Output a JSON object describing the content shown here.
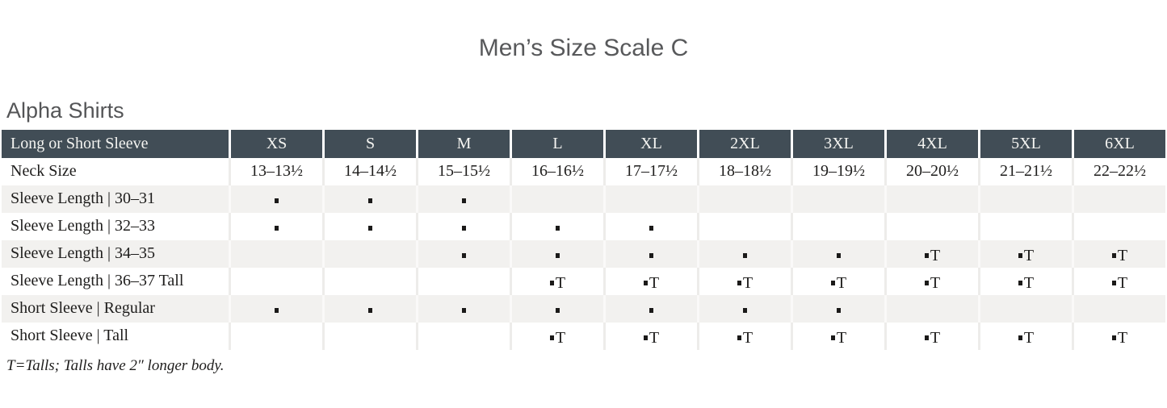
{
  "page": {
    "title": "Men’s Size Scale C",
    "section_heading": "Alpha Shirts",
    "footnote": "T=Talls; Talls have 2″ longer body."
  },
  "table": {
    "header_label": "Long or Short Sleeve",
    "sizes": [
      "XS",
      "S",
      "M",
      "L",
      "XL",
      "2XL",
      "3XL",
      "4XL",
      "5XL",
      "6XL"
    ],
    "marker_tall_glyph": "T",
    "rows": [
      {
        "label": "Neck Size",
        "type": "text",
        "values": [
          "13–13½",
          "14–14½",
          "15–15½",
          "16–16½",
          "17–17½",
          "18–18½",
          "19–19½",
          "20–20½",
          "21–21½",
          "22–22½"
        ]
      },
      {
        "label": "Sleeve Length | 30–31",
        "type": "marks",
        "values": [
          "dot",
          "dot",
          "dot",
          "",
          "",
          "",
          "",
          "",
          "",
          ""
        ]
      },
      {
        "label": "Sleeve Length | 32–33",
        "type": "marks",
        "values": [
          "dot",
          "dot",
          "dot",
          "dot",
          "dot",
          "",
          "",
          "",
          "",
          ""
        ]
      },
      {
        "label": "Sleeve Length | 34–35",
        "type": "marks",
        "values": [
          "",
          "",
          "dot",
          "dot",
          "dot",
          "dot",
          "dot",
          "dotT",
          "dotT",
          "dotT"
        ]
      },
      {
        "label": "Sleeve Length | 36–37 Tall",
        "type": "marks",
        "values": [
          "",
          "",
          "",
          "dotT",
          "dotT",
          "dotT",
          "dotT",
          "dotT",
          "dotT",
          "dotT"
        ]
      },
      {
        "label": "Short Sleeve | Regular",
        "type": "marks",
        "values": [
          "dot",
          "dot",
          "dot",
          "dot",
          "dot",
          "dot",
          "dot",
          "",
          "",
          ""
        ]
      },
      {
        "label": "Short Sleeve | Tall",
        "type": "marks",
        "values": [
          "",
          "",
          "",
          "dotT",
          "dotT",
          "dotT",
          "dotT",
          "dotT",
          "dotT",
          "dotT"
        ]
      }
    ]
  },
  "colors": {
    "header_bg": "#414d56",
    "header_text": "#f4f4f1",
    "stripe_bg": "#f2f1ef",
    "body_text": "#1e1d1c",
    "heading_text": "#58595b"
  }
}
